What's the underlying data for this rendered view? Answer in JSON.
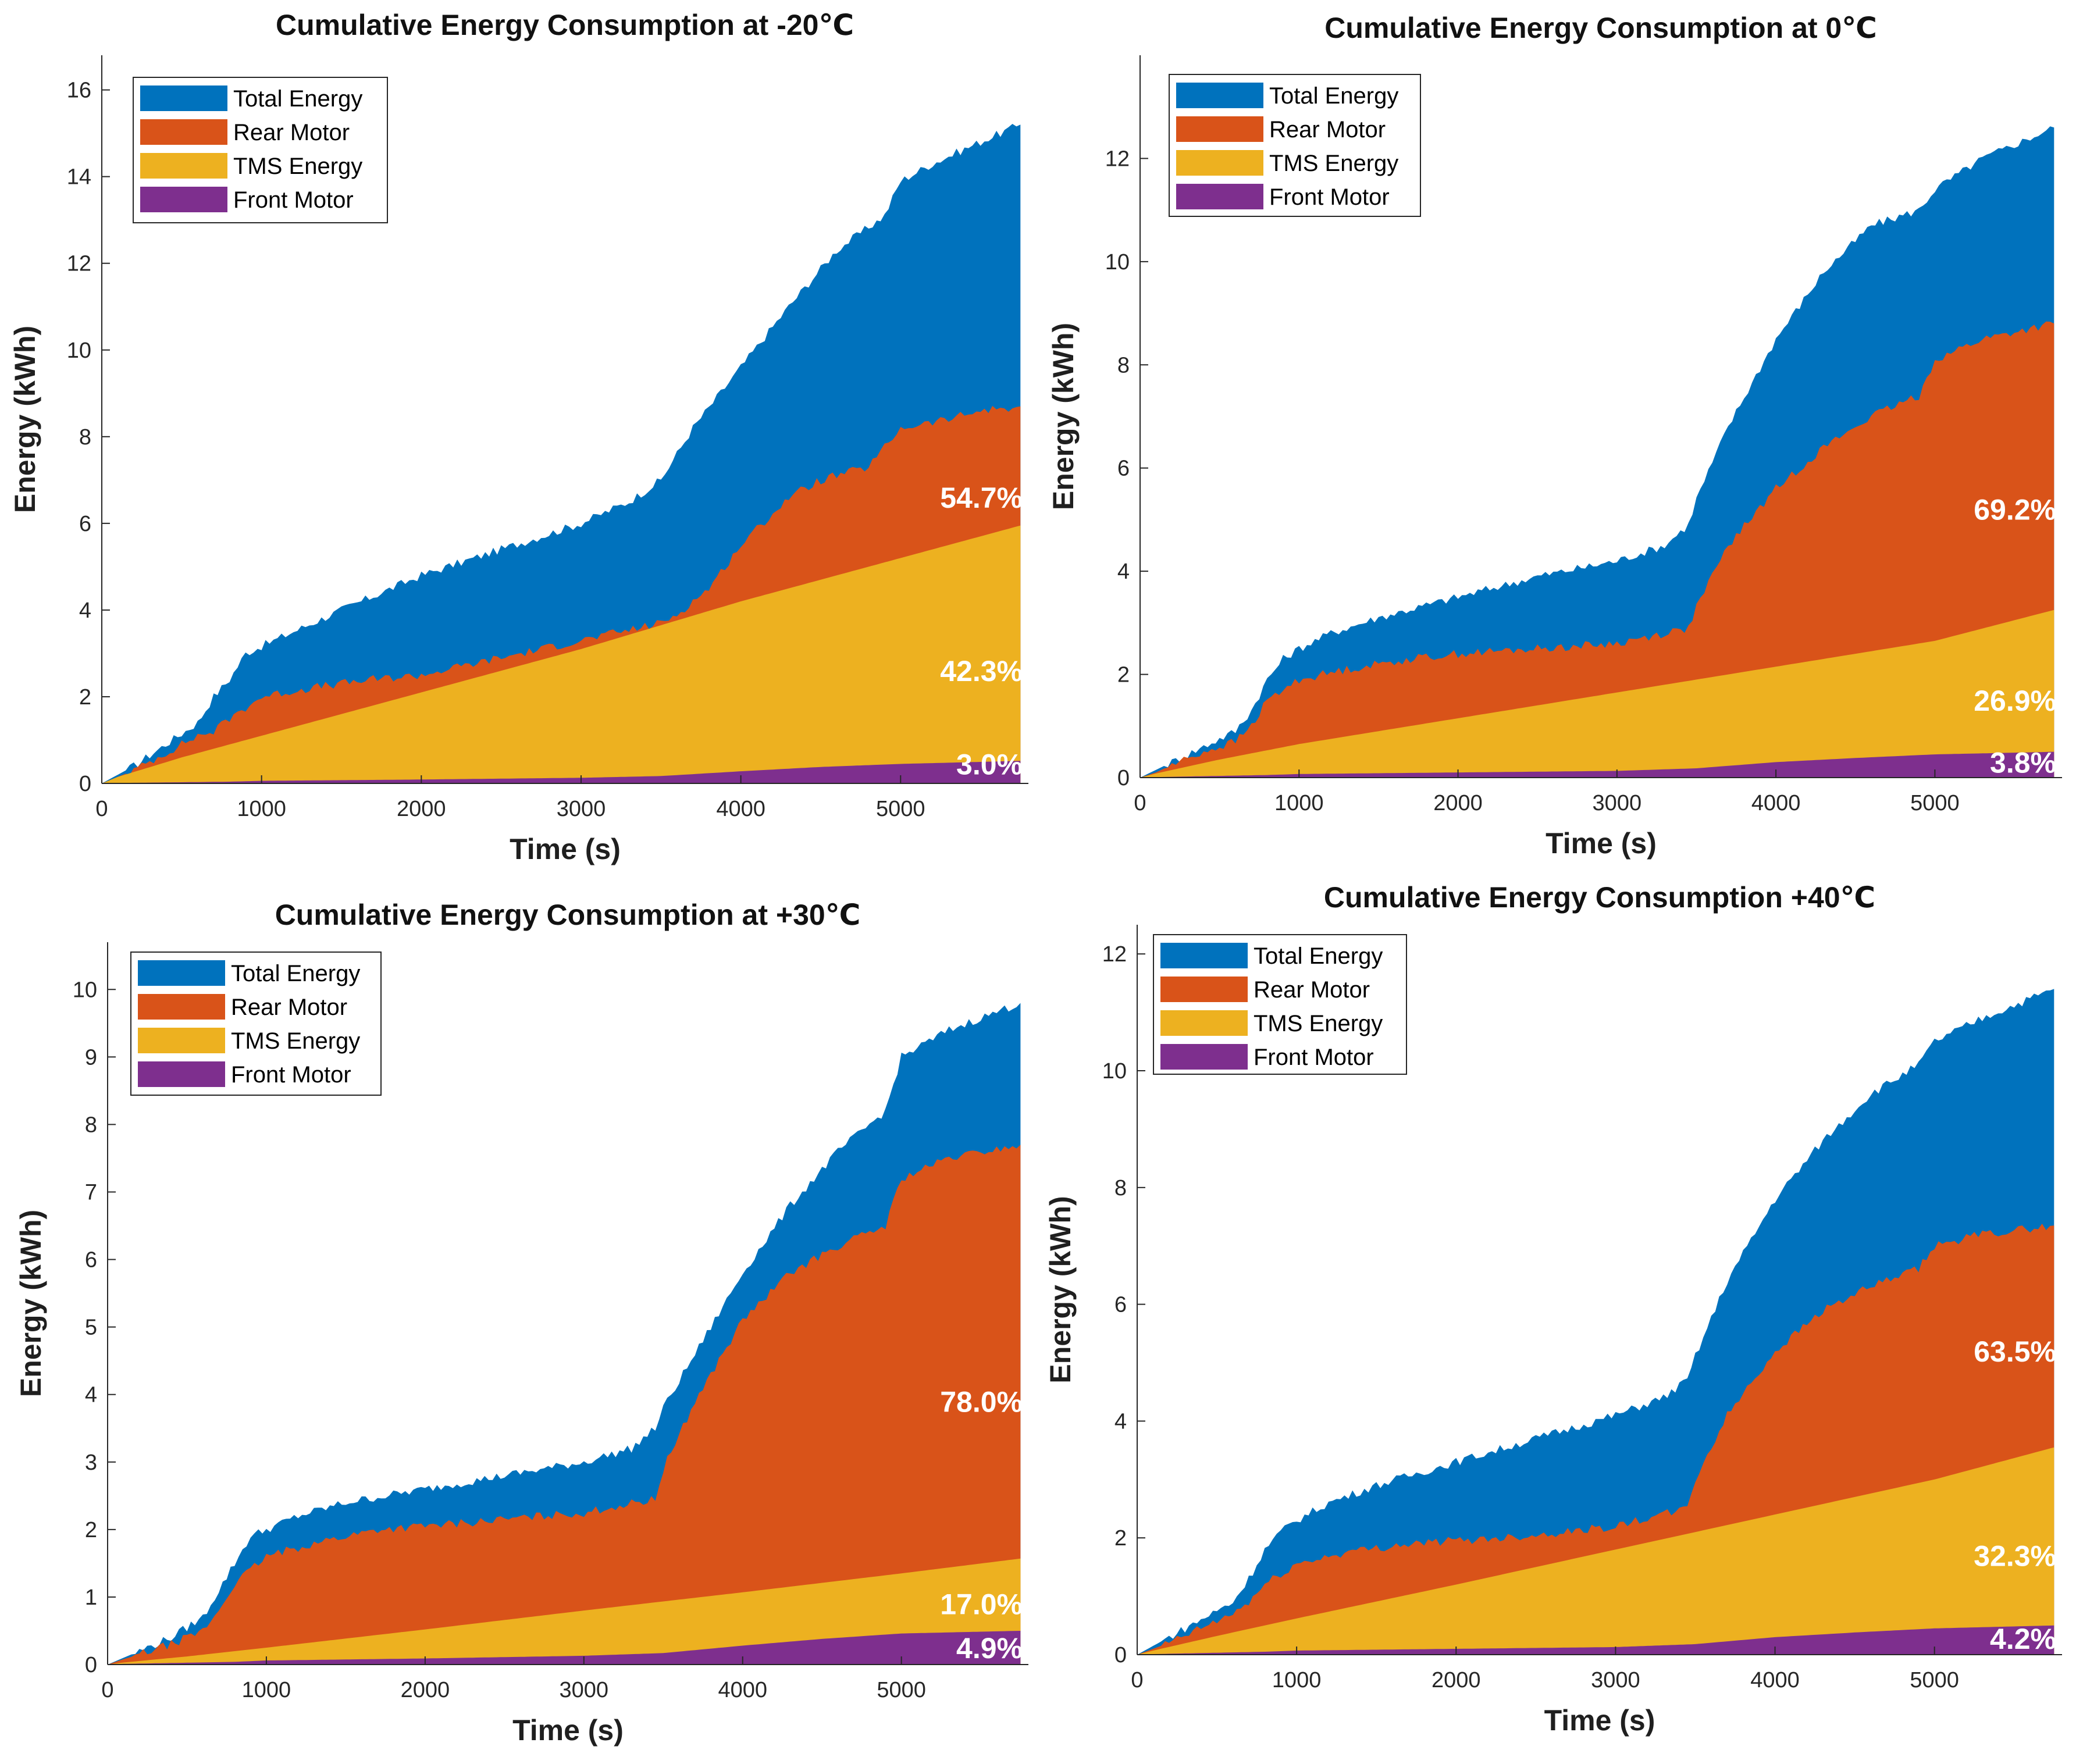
{
  "chart_data": [
    {
      "type": "area",
      "title": "Cumulative Energy Consumption at -20℃",
      "xlabel": "Time (s)",
      "ylabel": "Energy (kWh)",
      "xlim": [
        0,
        5800
      ],
      "ylim": [
        0,
        16.8
      ],
      "xticks": [
        0,
        1000,
        2000,
        3000,
        4000,
        5000
      ],
      "yticks": [
        0,
        2,
        4,
        6,
        8,
        10,
        12,
        14,
        16
      ],
      "legend": [
        "Total Energy",
        "Rear Motor",
        "TMS Energy",
        "Front Motor"
      ],
      "legend_position": "top-left",
      "series": [
        {
          "name": "Total Energy",
          "color": "#0072BD",
          "x": [
            0,
            100,
            200,
            400,
            600,
            700,
            800,
            900,
            1200,
            1500,
            2000,
            2500,
            3000,
            3300,
            3500,
            3700,
            4000,
            4300,
            4600,
            4900,
            5000,
            5200,
            5500,
            5750
          ],
          "y": [
            0,
            0.2,
            0.4,
            0.9,
            1.4,
            2.0,
            2.4,
            3.0,
            3.5,
            4.0,
            4.8,
            5.4,
            6.0,
            6.5,
            7.0,
            8.2,
            9.6,
            11.0,
            12.3,
            13.1,
            13.9,
            14.3,
            14.8,
            15.2
          ]
        },
        {
          "name": "Rear Motor",
          "color": "#D95319",
          "x": [
            0,
            100,
            200,
            400,
            600,
            700,
            800,
            1000,
            1300,
            1700,
            2000,
            2500,
            3000,
            3500,
            3600,
            3800,
            4000,
            4300,
            4500,
            4800,
            5000,
            5300,
            5500,
            5750
          ],
          "y": [
            0,
            0.15,
            0.3,
            0.7,
            1.1,
            1.2,
            1.5,
            2.0,
            2.2,
            2.4,
            2.5,
            2.9,
            3.3,
            3.7,
            3.9,
            4.5,
            5.5,
            6.6,
            7.0,
            7.3,
            8.2,
            8.4,
            8.6,
            8.7
          ]
        },
        {
          "name": "TMS Energy",
          "color": "#EDB120",
          "x": [
            0,
            100,
            500,
            1000,
            2000,
            3000,
            4000,
            5000,
            5750
          ],
          "y": [
            0,
            0.15,
            0.6,
            1.1,
            2.1,
            3.1,
            4.2,
            5.2,
            5.95
          ]
        },
        {
          "name": "Front Motor",
          "color": "#7E2F8E",
          "x": [
            0,
            100,
            800,
            1000,
            2000,
            3000,
            3500,
            4000,
            4500,
            5000,
            5750
          ],
          "y": [
            0,
            0.01,
            0.04,
            0.06,
            0.09,
            0.13,
            0.17,
            0.28,
            0.38,
            0.45,
            0.52
          ]
        }
      ],
      "annotations": [
        {
          "text": "54.7%",
          "x": 5400,
          "y": 6.6
        },
        {
          "text": "42.3%",
          "x": 5400,
          "y": 2.6
        },
        {
          "text": "3.0%",
          "x": 5400,
          "y": 0.45
        }
      ]
    },
    {
      "type": "area",
      "title": "Cumulative Energy Consumption at 0℃",
      "xlabel": "Time (s)",
      "ylabel": "Energy (kWh)",
      "xlim": [
        0,
        5800
      ],
      "ylim": [
        0,
        14
      ],
      "xticks": [
        0,
        1000,
        2000,
        3000,
        4000,
        5000
      ],
      "yticks": [
        0,
        2,
        4,
        6,
        8,
        10,
        12
      ],
      "legend": [
        "Total Energy",
        "Rear Motor",
        "TMS Energy",
        "Front Motor"
      ],
      "legend_position": "top-left",
      "series": [
        {
          "name": "Total Energy",
          "color": "#0072BD",
          "x": [
            0,
            100,
            200,
            400,
            600,
            700,
            800,
            900,
            1000,
            1200,
            1500,
            2000,
            2500,
            3000,
            3300,
            3450,
            3500,
            3700,
            4000,
            4300,
            4600,
            4900,
            5000,
            5300,
            5750
          ],
          "y": [
            0,
            0.15,
            0.3,
            0.6,
            0.9,
            1.3,
            1.9,
            2.3,
            2.5,
            2.8,
            3.1,
            3.5,
            3.9,
            4.2,
            4.5,
            4.9,
            5.4,
            6.8,
            8.5,
            9.8,
            10.7,
            11.0,
            11.4,
            12.0,
            12.6
          ]
        },
        {
          "name": "Rear Motor",
          "color": "#D95319",
          "x": [
            0,
            100,
            200,
            400,
            600,
            700,
            800,
            1000,
            1300,
            1700,
            2000,
            2500,
            3000,
            3450,
            3500,
            3700,
            4000,
            4300,
            4600,
            4900,
            5000,
            5300,
            5750
          ],
          "y": [
            0,
            0.1,
            0.25,
            0.5,
            0.7,
            1.0,
            1.5,
            1.9,
            2.1,
            2.3,
            2.4,
            2.5,
            2.6,
            2.9,
            3.3,
            4.5,
            5.6,
            6.4,
            7.0,
            7.4,
            8.1,
            8.5,
            8.8
          ]
        },
        {
          "name": "TMS Energy",
          "color": "#EDB120",
          "x": [
            0,
            100,
            500,
            1000,
            2000,
            3000,
            4000,
            5000,
            5750
          ],
          "y": [
            0,
            0.08,
            0.35,
            0.65,
            1.15,
            1.65,
            2.15,
            2.65,
            3.25
          ]
        },
        {
          "name": "Front Motor",
          "color": "#7E2F8E",
          "x": [
            0,
            100,
            800,
            1000,
            2000,
            3000,
            3500,
            4000,
            4500,
            5000,
            5750
          ],
          "y": [
            0,
            0.01,
            0.05,
            0.07,
            0.1,
            0.13,
            0.18,
            0.3,
            0.38,
            0.45,
            0.5
          ]
        }
      ],
      "annotations": [
        {
          "text": "69.2%",
          "x": 5400,
          "y": 5.2
        },
        {
          "text": "26.9%",
          "x": 5400,
          "y": 1.5
        },
        {
          "text": "3.8%",
          "x": 5400,
          "y": 0.3
        }
      ]
    },
    {
      "type": "area",
      "title": "Cumulative Energy Consumption at +30℃",
      "xlabel": "Time (s)",
      "ylabel": "Energy (kWh)",
      "xlim": [
        0,
        5800
      ],
      "ylim": [
        0,
        10.7
      ],
      "xticks": [
        0,
        1000,
        2000,
        3000,
        4000,
        5000
      ],
      "yticks": [
        0,
        1,
        2,
        3,
        4,
        5,
        6,
        7,
        8,
        9,
        10
      ],
      "legend": [
        "Total Energy",
        "Rear Motor",
        "TMS Energy",
        "Front Motor"
      ],
      "legend_position": "top-left",
      "series": [
        {
          "name": "Total Energy",
          "color": "#0072BD",
          "x": [
            0,
            100,
            200,
            400,
            600,
            700,
            800,
            900,
            1000,
            1200,
            1500,
            2000,
            2500,
            3000,
            3300,
            3450,
            3500,
            3700,
            4000,
            4300,
            4600,
            4900,
            5000,
            5300,
            5750
          ],
          "y": [
            0,
            0.1,
            0.2,
            0.4,
            0.7,
            1.1,
            1.5,
            1.9,
            2.0,
            2.2,
            2.4,
            2.6,
            2.8,
            3.0,
            3.2,
            3.5,
            3.8,
            4.6,
            5.8,
            6.8,
            7.6,
            8.2,
            9.0,
            9.4,
            9.8
          ]
        },
        {
          "name": "Rear Motor",
          "color": "#D95319",
          "x": [
            0,
            100,
            200,
            400,
            600,
            700,
            800,
            1000,
            1300,
            1700,
            2000,
            2500,
            3000,
            3450,
            3500,
            3700,
            4000,
            4300,
            4600,
            4900,
            5000,
            5300,
            5750
          ],
          "y": [
            0,
            0.08,
            0.15,
            0.3,
            0.5,
            0.8,
            1.2,
            1.6,
            1.8,
            2.0,
            2.05,
            2.15,
            2.25,
            2.45,
            2.9,
            3.9,
            5.1,
            5.8,
            6.2,
            6.5,
            7.2,
            7.5,
            7.7
          ]
        },
        {
          "name": "TMS Energy",
          "color": "#EDB120",
          "x": [
            0,
            100,
            500,
            1000,
            2000,
            3000,
            4000,
            5000,
            5750
          ],
          "y": [
            0,
            0.03,
            0.12,
            0.25,
            0.52,
            0.8,
            1.07,
            1.35,
            1.57
          ]
        },
        {
          "name": "Front Motor",
          "color": "#7E2F8E",
          "x": [
            0,
            100,
            800,
            1000,
            2000,
            3000,
            3500,
            4000,
            4500,
            5000,
            5750
          ],
          "y": [
            0,
            0.01,
            0.04,
            0.06,
            0.09,
            0.13,
            0.17,
            0.28,
            0.38,
            0.46,
            0.5
          ]
        }
      ],
      "annotations": [
        {
          "text": "78.0%",
          "x": 5400,
          "y": 3.9
        },
        {
          "text": "17.0%",
          "x": 5400,
          "y": 0.9
        },
        {
          "text": "4.9%",
          "x": 5400,
          "y": 0.25
        }
      ]
    },
    {
      "type": "area",
      "title": "Cumulative Energy Consumption +40℃",
      "xlabel": "Time (s)",
      "ylabel": "Energy (kWh)",
      "xlim": [
        0,
        5800
      ],
      "ylim": [
        0,
        12.5
      ],
      "xticks": [
        0,
        1000,
        2000,
        3000,
        4000,
        5000
      ],
      "yticks": [
        0,
        2,
        4,
        6,
        8,
        10,
        12
      ],
      "legend": [
        "Total Energy",
        "Rear Motor",
        "TMS Energy",
        "Front Motor"
      ],
      "legend_position": "top-left",
      "series": [
        {
          "name": "Total Energy",
          "color": "#0072BD",
          "x": [
            0,
            100,
            200,
            400,
            600,
            700,
            800,
            900,
            1000,
            1200,
            1500,
            2000,
            2500,
            3000,
            3300,
            3450,
            3500,
            3700,
            4000,
            4300,
            4600,
            4900,
            5000,
            5300,
            5750
          ],
          "y": [
            0,
            0.15,
            0.3,
            0.6,
            0.9,
            1.3,
            1.8,
            2.1,
            2.3,
            2.6,
            2.9,
            3.3,
            3.7,
            4.1,
            4.4,
            4.7,
            5.1,
            6.4,
            7.8,
            8.8,
            9.6,
            10.1,
            10.5,
            10.9,
            11.4
          ]
        },
        {
          "name": "Rear Motor",
          "color": "#D95319",
          "x": [
            0,
            100,
            200,
            400,
            600,
            700,
            800,
            1000,
            1300,
            1700,
            2000,
            2500,
            3000,
            3450,
            3500,
            3700,
            4000,
            4300,
            4600,
            4900,
            5000,
            5300,
            5750
          ],
          "y": [
            0,
            0.1,
            0.2,
            0.45,
            0.7,
            0.9,
            1.2,
            1.55,
            1.75,
            1.9,
            1.95,
            2.05,
            2.2,
            2.5,
            3.0,
            4.1,
            5.2,
            5.9,
            6.3,
            6.6,
            7.0,
            7.2,
            7.35
          ]
        },
        {
          "name": "TMS Energy",
          "color": "#EDB120",
          "x": [
            0,
            100,
            500,
            1000,
            2000,
            3000,
            4000,
            5000,
            5750
          ],
          "y": [
            0,
            0.07,
            0.32,
            0.62,
            1.2,
            1.8,
            2.4,
            3.0,
            3.55
          ]
        },
        {
          "name": "Front Motor",
          "color": "#7E2F8E",
          "x": [
            0,
            100,
            800,
            1000,
            2000,
            3000,
            3500,
            4000,
            4500,
            5000,
            5750
          ],
          "y": [
            0,
            0.01,
            0.05,
            0.07,
            0.1,
            0.13,
            0.18,
            0.3,
            0.38,
            0.45,
            0.5
          ]
        }
      ],
      "annotations": [
        {
          "text": "63.5%",
          "x": 5400,
          "y": 5.2
        },
        {
          "text": "32.3%",
          "x": 5400,
          "y": 1.7
        },
        {
          "text": "4.2%",
          "x": 5400,
          "y": 0.28
        }
      ]
    }
  ]
}
